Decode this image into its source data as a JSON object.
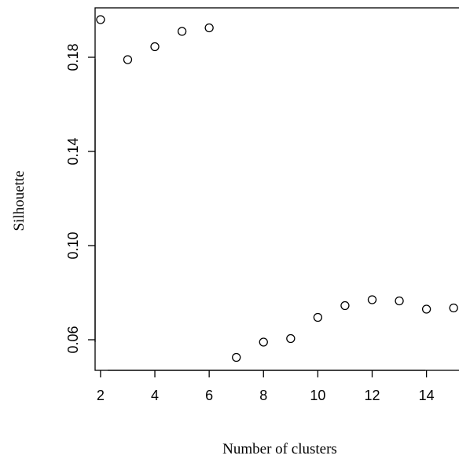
{
  "chart_data": {
    "type": "scatter",
    "title": "",
    "xlabel": "Number of clusters",
    "ylabel": "Silhouette",
    "x": [
      2,
      3,
      4,
      5,
      6,
      7,
      8,
      9,
      10,
      11,
      12,
      13,
      14,
      15
    ],
    "y": [
      0.196,
      0.179,
      0.1845,
      0.191,
      0.1925,
      0.0525,
      0.059,
      0.0605,
      0.0695,
      0.0745,
      0.077,
      0.0765,
      0.073,
      0.0735
    ],
    "x_ticks": [
      "2",
      "4",
      "6",
      "8",
      "10",
      "12",
      "14"
    ],
    "y_ticks": [
      "0.06",
      "0.10",
      "0.14",
      "0.18"
    ],
    "xlim": [
      1.8,
      15.4
    ],
    "ylim": [
      0.047,
      0.201
    ],
    "grid": false,
    "marker": "open-circle",
    "colors": {
      "point": "#000000",
      "axis": "#000000",
      "background": "#ffffff"
    }
  }
}
